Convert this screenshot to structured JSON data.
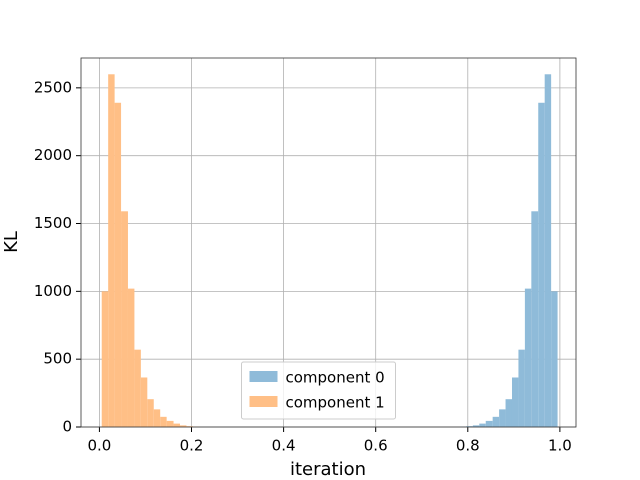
{
  "chart_data": {
    "type": "histogram",
    "xlabel": "iteration",
    "ylabel": "KL",
    "bins": [
      0.005,
      0.019,
      0.033,
      0.047,
      0.062,
      0.076,
      0.09,
      0.104,
      0.118,
      0.132,
      0.146,
      0.161,
      0.175,
      0.189,
      0.203,
      0.217,
      0.231,
      0.245,
      0.26,
      0.274,
      0.288,
      0.302,
      0.316,
      0.33,
      0.344,
      0.359,
      0.373,
      0.387,
      0.401,
      0.415,
      0.429,
      0.443,
      0.458,
      0.472,
      0.486,
      0.5,
      0.514,
      0.528,
      0.542,
      0.557,
      0.571,
      0.585,
      0.599,
      0.613,
      0.627,
      0.641,
      0.656,
      0.67,
      0.684,
      0.698,
      0.712,
      0.726,
      0.74,
      0.755,
      0.769,
      0.783,
      0.797,
      0.811,
      0.825,
      0.839,
      0.854,
      0.868,
      0.882,
      0.896,
      0.91,
      0.924,
      0.938,
      0.953,
      0.967,
      0.981,
      0.995
    ],
    "series": [
      {
        "name": "component 0",
        "color": "#8fbbd9",
        "values": [
          0,
          0,
          0,
          0,
          0,
          0,
          0,
          0,
          0,
          0,
          0,
          0,
          0,
          0,
          0,
          0,
          0,
          0,
          0,
          0,
          0,
          0,
          0,
          0,
          0,
          0,
          0,
          0,
          0,
          0,
          0,
          0,
          0,
          0,
          0,
          0,
          0,
          0,
          0,
          0,
          0,
          0,
          0,
          0,
          0,
          0,
          0,
          0,
          0,
          0,
          0,
          0,
          0,
          0,
          0,
          3,
          6,
          12,
          25,
          45,
          75,
          130,
          205,
          365,
          570,
          1020,
          1590,
          2390,
          2600,
          1000
        ]
      },
      {
        "name": "component 1",
        "color": "#ffbf86",
        "values": [
          1000,
          2600,
          2390,
          1590,
          1020,
          570,
          365,
          205,
          130,
          75,
          45,
          25,
          12,
          6,
          3,
          0,
          0,
          0,
          0,
          0,
          0,
          0,
          0,
          0,
          0,
          0,
          0,
          0,
          0,
          0,
          0,
          0,
          0,
          0,
          0,
          0,
          0,
          0,
          0,
          0,
          0,
          0,
          0,
          0,
          0,
          0,
          0,
          0,
          0,
          0,
          0,
          0,
          0,
          0,
          0,
          0,
          0,
          0,
          0,
          0,
          0,
          0,
          0,
          0,
          0,
          0,
          0,
          0,
          0,
          0
        ]
      }
    ],
    "xlim": [
      -0.04,
      1.035
    ],
    "ylim": [
      0,
      2720
    ],
    "xticks": [
      {
        "value": 0,
        "label": "0.0"
      },
      0.2,
      0.4,
      0.6,
      0.8,
      {
        "value": 1,
        "label": "1.0"
      }
    ],
    "yticks": [
      0,
      500,
      1000,
      1500,
      2000,
      2500
    ],
    "grid": true,
    "legend": "lower center"
  }
}
